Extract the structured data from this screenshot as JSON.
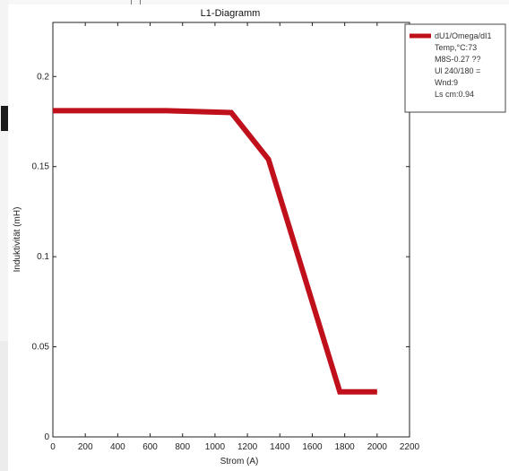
{
  "chart_data": {
    "type": "line",
    "title": "L1-Diagramm",
    "xlabel": "Strom (A)",
    "ylabel": "Induktivität (mH)",
    "xlim": [
      0,
      2200
    ],
    "ylim": [
      0,
      0.23
    ],
    "x_ticks": [
      "0",
      "200",
      "400",
      "600",
      "800",
      "1000",
      "1200",
      "1400",
      "1600",
      "1800",
      "2000",
      "2200"
    ],
    "x_tick_values": [
      0,
      200,
      400,
      600,
      800,
      1000,
      1200,
      1400,
      1600,
      1800,
      2000,
      2200
    ],
    "y_ticks": [
      "0",
      "0.05",
      "0.1",
      "0.15",
      "0.2"
    ],
    "y_tick_values": [
      0,
      0.05,
      0.1,
      0.15,
      0.2
    ],
    "grid": false,
    "legend_position": "outside-top-right",
    "series": [
      {
        "name": "dU1/Omega/dI1",
        "color": "#c0101c",
        "x": [
          0,
          700,
          1100,
          1330,
          1770,
          2000
        ],
        "y": [
          0.181,
          0.181,
          0.18,
          0.154,
          0.025,
          0.025
        ]
      }
    ],
    "legend_notes": [
      "Temp,°C:73",
      "M8S-0.27 ??",
      "Ul 240/180 =",
      "Wnd:9",
      "Ls cm:0.94"
    ]
  }
}
